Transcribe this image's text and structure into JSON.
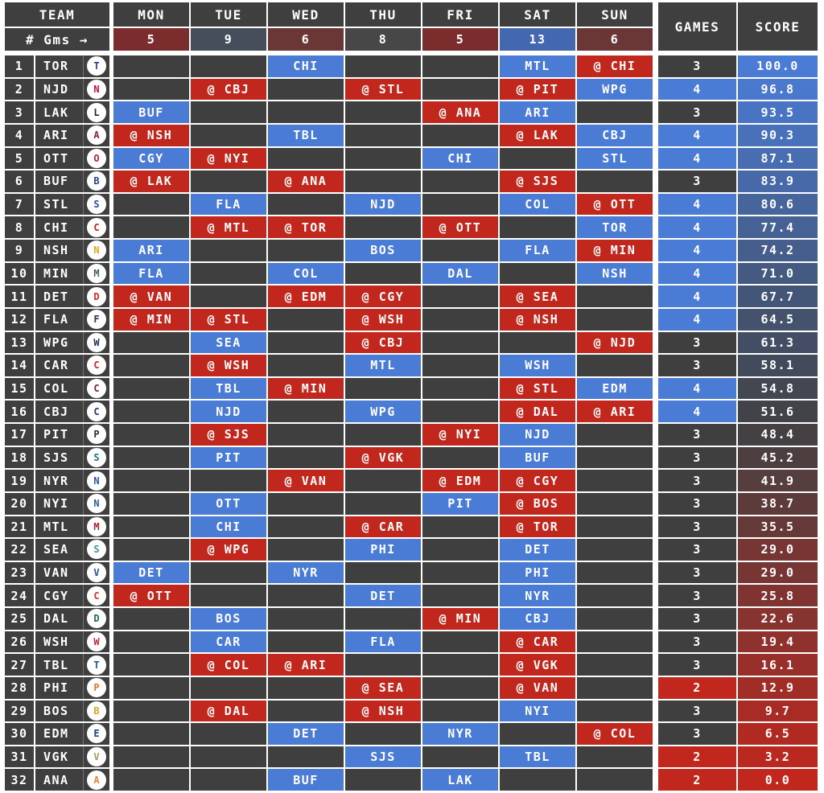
{
  "header": {
    "team_label": "TEAM",
    "gms_label": "# Gms →",
    "days": [
      "MON",
      "TUE",
      "WED",
      "THU",
      "FRI",
      "SAT",
      "SUN"
    ],
    "day_game_counts": [
      5,
      9,
      6,
      8,
      5,
      13,
      6
    ],
    "day_count_colors": [
      "#7b2d2d",
      "#464e5c",
      "#6a3636",
      "#474747",
      "#7b2d2d",
      "#4468b0",
      "#6a3636"
    ],
    "games_label": "GAMES",
    "score_label": "SCORE"
  },
  "colors": {
    "home": "#4a7cd6",
    "away": "#c1271d",
    "empty": "#3f3f3f",
    "cell_text": "#ffffff",
    "grid_background": "#ffffff",
    "games_colors": {
      "2": "#c1271d",
      "3": "#3f3f3f",
      "4": "#4a7cd6"
    },
    "score_scale": {
      "low": "#c1271d",
      "mid": "#414144",
      "high": "#4a7cd6"
    }
  },
  "teams": [
    {
      "rank": 1,
      "abbr": "TOR",
      "logo_color": "#1f4396",
      "schedule": [
        "",
        "",
        "CHI",
        "",
        "",
        "MTL",
        "@ CHI"
      ],
      "games": 3,
      "score": "100.0"
    },
    {
      "rank": 2,
      "abbr": "NJD",
      "logo_color": "#c8102e",
      "schedule": [
        "",
        "@ CBJ",
        "",
        "@ STL",
        "",
        "@ PIT",
        "WPG"
      ],
      "games": 4,
      "score": "96.8"
    },
    {
      "rank": 3,
      "abbr": "LAK",
      "logo_color": "#2a2a2a",
      "schedule": [
        "BUF",
        "",
        "",
        "",
        "@ ANA",
        "ARI",
        ""
      ],
      "games": 3,
      "score": "93.5"
    },
    {
      "rank": 4,
      "abbr": "ARI",
      "logo_color": "#8c2633",
      "schedule": [
        "@ NSH",
        "",
        "TBL",
        "",
        "",
        "@ LAK",
        "CBJ"
      ],
      "games": 4,
      "score": "90.3"
    },
    {
      "rank": 5,
      "abbr": "OTT",
      "logo_color": "#c4222e",
      "schedule": [
        "CGY",
        "@ NYI",
        "",
        "",
        "CHI",
        "",
        "STL"
      ],
      "games": 4,
      "score": "87.1"
    },
    {
      "rank": 6,
      "abbr": "BUF",
      "logo_color": "#24418e",
      "schedule": [
        "@ LAK",
        "",
        "@ ANA",
        "",
        "",
        "@ SJS",
        ""
      ],
      "games": 3,
      "score": "83.9"
    },
    {
      "rank": 7,
      "abbr": "STL",
      "logo_color": "#2f4e97",
      "schedule": [
        "",
        "FLA",
        "",
        "NJD",
        "",
        "COL",
        "@ OTT"
      ],
      "games": 4,
      "score": "80.6"
    },
    {
      "rank": 8,
      "abbr": "CHI",
      "logo_color": "#c21f1f",
      "schedule": [
        "",
        "@ MTL",
        "@ TOR",
        "",
        "@ OTT",
        "",
        "TOR"
      ],
      "games": 4,
      "score": "77.4"
    },
    {
      "rank": 9,
      "abbr": "NSH",
      "logo_color": "#e8a321",
      "schedule": [
        "ARI",
        "",
        "",
        "BOS",
        "",
        "FLA",
        "@ MIN"
      ],
      "games": 4,
      "score": "74.2"
    },
    {
      "rank": 10,
      "abbr": "MIN",
      "logo_color": "#35654d",
      "schedule": [
        "FLA",
        "",
        "COL",
        "",
        "DAL",
        "",
        "NSH"
      ],
      "games": 4,
      "score": "71.0"
    },
    {
      "rank": 11,
      "abbr": "DET",
      "logo_color": "#d42c23",
      "schedule": [
        "@ VAN",
        "",
        "@ EDM",
        "@ CGY",
        "",
        "@ SEA",
        ""
      ],
      "games": 4,
      "score": "67.7"
    },
    {
      "rank": 12,
      "abbr": "FLA",
      "logo_color": "#22365c",
      "schedule": [
        "@ MIN",
        "@ STL",
        "",
        "@ WSH",
        "",
        "@ NSH",
        ""
      ],
      "games": 4,
      "score": "64.5"
    },
    {
      "rank": 13,
      "abbr": "WPG",
      "logo_color": "#1b3057",
      "schedule": [
        "",
        "SEA",
        "",
        "@ CBJ",
        "",
        "",
        "@ NJD"
      ],
      "games": 3,
      "score": "61.3"
    },
    {
      "rank": 14,
      "abbr": "CAR",
      "logo_color": "#d2222c",
      "schedule": [
        "",
        "@ WSH",
        "",
        "MTL",
        "",
        "WSH",
        ""
      ],
      "games": 3,
      "score": "58.1"
    },
    {
      "rank": 15,
      "abbr": "COL",
      "logo_color": "#6f263d",
      "schedule": [
        "",
        "TBL",
        "@ MIN",
        "",
        "",
        "@ STL",
        "EDM"
      ],
      "games": 4,
      "score": "54.8"
    },
    {
      "rank": 16,
      "abbr": "CBJ",
      "logo_color": "#1d3a6d",
      "schedule": [
        "",
        "NJD",
        "",
        "WPG",
        "",
        "@ DAL",
        "@ ARI"
      ],
      "games": 4,
      "score": "51.6"
    },
    {
      "rank": 17,
      "abbr": "PIT",
      "logo_color": "#2e2e2e",
      "schedule": [
        "",
        "@ SJS",
        "",
        "",
        "@ NYI",
        "NJD",
        ""
      ],
      "games": 3,
      "score": "48.4"
    },
    {
      "rank": 18,
      "abbr": "SJS",
      "logo_color": "#1a7382",
      "schedule": [
        "",
        "PIT",
        "",
        "@ VGK",
        "",
        "BUF",
        ""
      ],
      "games": 3,
      "score": "45.2"
    },
    {
      "rank": 19,
      "abbr": "NYR",
      "logo_color": "#2753a8",
      "schedule": [
        "",
        "",
        "@ VAN",
        "",
        "@ EDM",
        "@ CGY",
        ""
      ],
      "games": 3,
      "score": "41.9"
    },
    {
      "rank": 20,
      "abbr": "NYI",
      "logo_color": "#2a5aa3",
      "schedule": [
        "",
        "OTT",
        "",
        "",
        "PIT",
        "@ BOS",
        ""
      ],
      "games": 3,
      "score": "38.7"
    },
    {
      "rank": 21,
      "abbr": "MTL",
      "logo_color": "#af1e2d",
      "schedule": [
        "",
        "CHI",
        "",
        "@ CAR",
        "",
        "@ TOR",
        ""
      ],
      "games": 3,
      "score": "35.5"
    },
    {
      "rank": 22,
      "abbr": "SEA",
      "logo_color": "#4a90a4",
      "schedule": [
        "",
        "@ WPG",
        "",
        "PHI",
        "",
        "DET",
        ""
      ],
      "games": 3,
      "score": "29.0"
    },
    {
      "rank": 23,
      "abbr": "VAN",
      "logo_color": "#2a4f8f",
      "schedule": [
        "DET",
        "",
        "NYR",
        "",
        "",
        "PHI",
        ""
      ],
      "games": 3,
      "score": "29.0"
    },
    {
      "rank": 24,
      "abbr": "CGY",
      "logo_color": "#d03231",
      "schedule": [
        "@ OTT",
        "",
        "",
        "DET",
        "",
        "NYR",
        ""
      ],
      "games": 3,
      "score": "25.8"
    },
    {
      "rank": 25,
      "abbr": "DAL",
      "logo_color": "#1f6e4c",
      "schedule": [
        "",
        "BOS",
        "",
        "",
        "@ MIN",
        "CBJ",
        ""
      ],
      "games": 3,
      "score": "22.6"
    },
    {
      "rank": 26,
      "abbr": "WSH",
      "logo_color": "#c52739",
      "schedule": [
        "",
        "CAR",
        "",
        "FLA",
        "",
        "@ CAR",
        ""
      ],
      "games": 3,
      "score": "19.4"
    },
    {
      "rank": 27,
      "abbr": "TBL",
      "logo_color": "#2456a4",
      "schedule": [
        "",
        "@ COL",
        "@ ARI",
        "",
        "",
        "@ VGK",
        ""
      ],
      "games": 3,
      "score": "16.1"
    },
    {
      "rank": 28,
      "abbr": "PHI",
      "logo_color": "#ee7623",
      "schedule": [
        "",
        "",
        "",
        "@ SEA",
        "",
        "@ VAN",
        ""
      ],
      "games": 2,
      "score": "12.9"
    },
    {
      "rank": 29,
      "abbr": "BOS",
      "logo_color": "#d9a02a",
      "schedule": [
        "",
        "@ DAL",
        "",
        "@ NSH",
        "",
        "NYI",
        ""
      ],
      "games": 3,
      "score": "9.7"
    },
    {
      "rank": 30,
      "abbr": "EDM",
      "logo_color": "#23408f",
      "schedule": [
        "",
        "",
        "DET",
        "",
        "NYR",
        "",
        "@ COL"
      ],
      "games": 3,
      "score": "6.5"
    },
    {
      "rank": 31,
      "abbr": "VGK",
      "logo_color": "#ab9564",
      "schedule": [
        "",
        "",
        "",
        "SJS",
        "",
        "TBL",
        ""
      ],
      "games": 2,
      "score": "3.2"
    },
    {
      "rank": 32,
      "abbr": "ANA",
      "logo_color": "#e8853c",
      "schedule": [
        "",
        "",
        "BUF",
        "",
        "LAK",
        "",
        ""
      ],
      "games": 2,
      "score": "0.0"
    }
  ]
}
